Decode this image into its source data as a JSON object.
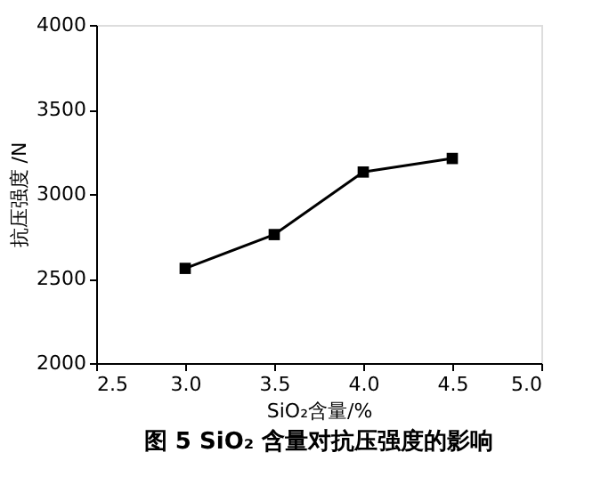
{
  "chart_data": {
    "type": "line",
    "title": "图 5    SiO₂ 含量对抗压强度的影响",
    "xlabel": "SiO₂含量/%",
    "ylabel": "抗压强度 /N",
    "x": [
      3.0,
      3.5,
      4.0,
      4.5
    ],
    "series": [
      {
        "color": "#000000",
        "values": [
          2560,
          2760,
          3130,
          3210
        ]
      }
    ],
    "xlim": [
      2.5,
      5.0
    ],
    "xticks": [
      2.5,
      {
        "value": 3,
        "label": "3.0"
      },
      3.5,
      {
        "value": 4,
        "label": "4.0"
      },
      4.5,
      {
        "value": 5,
        "label": "5.0"
      }
    ],
    "ylim": [
      2000,
      4000
    ],
    "yticks": [
      2000,
      2500,
      3000,
      3500,
      4000
    ],
    "marker": "square",
    "line_style": "solid",
    "grid": false,
    "legend": false
  }
}
